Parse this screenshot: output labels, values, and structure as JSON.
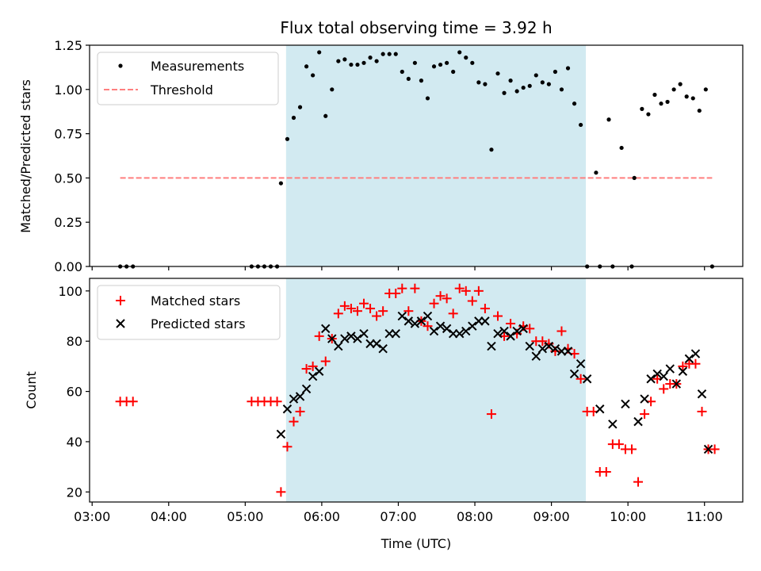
{
  "chart_data": [
    {
      "type": "scatter",
      "title": "Flux total observing time = 3.92 h",
      "xlabel": "",
      "ylabel": "Matched/Predicted stars",
      "ylim": [
        0,
        1.25
      ],
      "yticks": [
        "0.00",
        "0.25",
        "0.50",
        "0.75",
        "1.00",
        "1.25"
      ],
      "xlim": [
        "02:58",
        "11:30"
      ],
      "shaded_interval": [
        "05:32",
        "09:27"
      ],
      "shade_color": "#add8e6",
      "legend": "top-left",
      "series": [
        {
          "name": "Measurements",
          "color": "#000000",
          "marker": "dot",
          "points": [
            [
              "03:22",
              0
            ],
            [
              "03:27",
              0
            ],
            [
              "03:32",
              0
            ],
            [
              "05:05",
              0
            ],
            [
              "05:10",
              0
            ],
            [
              "05:15",
              0
            ],
            [
              "05:20",
              0
            ],
            [
              "05:25",
              0
            ],
            [
              "05:28",
              0.47
            ],
            [
              "05:33",
              0.72
            ],
            [
              "05:38",
              0.84
            ],
            [
              "05:43",
              0.9
            ],
            [
              "05:48",
              1.13
            ],
            [
              "05:53",
              1.08
            ],
            [
              "05:58",
              1.21
            ],
            [
              "06:03",
              0.85
            ],
            [
              "06:08",
              1.0
            ],
            [
              "06:13",
              1.16
            ],
            [
              "06:18",
              1.17
            ],
            [
              "06:23",
              1.14
            ],
            [
              "06:28",
              1.14
            ],
            [
              "06:33",
              1.15
            ],
            [
              "06:38",
              1.18
            ],
            [
              "06:43",
              1.16
            ],
            [
              "06:48",
              1.2
            ],
            [
              "06:53",
              1.2
            ],
            [
              "06:58",
              1.2
            ],
            [
              "07:03",
              1.1
            ],
            [
              "07:08",
              1.06
            ],
            [
              "07:13",
              1.15
            ],
            [
              "07:18",
              1.05
            ],
            [
              "07:23",
              0.95
            ],
            [
              "07:28",
              1.13
            ],
            [
              "07:33",
              1.14
            ],
            [
              "07:38",
              1.15
            ],
            [
              "07:43",
              1.1
            ],
            [
              "07:48",
              1.21
            ],
            [
              "07:53",
              1.18
            ],
            [
              "07:58",
              1.15
            ],
            [
              "08:03",
              1.04
            ],
            [
              "08:08",
              1.03
            ],
            [
              "08:13",
              0.66
            ],
            [
              "08:18",
              1.09
            ],
            [
              "08:23",
              0.98
            ],
            [
              "08:28",
              1.05
            ],
            [
              "08:33",
              0.99
            ],
            [
              "08:38",
              1.01
            ],
            [
              "08:43",
              1.02
            ],
            [
              "08:48",
              1.08
            ],
            [
              "08:53",
              1.04
            ],
            [
              "08:58",
              1.03
            ],
            [
              "09:03",
              1.1
            ],
            [
              "09:08",
              1.0
            ],
            [
              "09:13",
              1.12
            ],
            [
              "09:18",
              0.92
            ],
            [
              "09:23",
              0.8
            ],
            [
              "09:28",
              0
            ],
            [
              "09:38",
              0
            ],
            [
              "09:48",
              0
            ],
            [
              "10:03",
              0
            ],
            [
              "09:35",
              0.53
            ],
            [
              "09:45",
              0.83
            ],
            [
              "09:55",
              0.67
            ],
            [
              "10:05",
              0.5
            ],
            [
              "10:11",
              0.89
            ],
            [
              "10:16",
              0.86
            ],
            [
              "10:21",
              0.97
            ],
            [
              "10:26",
              0.92
            ],
            [
              "10:31",
              0.93
            ],
            [
              "10:36",
              1.0
            ],
            [
              "10:41",
              1.03
            ],
            [
              "10:46",
              0.96
            ],
            [
              "10:51",
              0.95
            ],
            [
              "10:56",
              0.88
            ],
            [
              "11:01",
              1.0
            ],
            [
              "11:06",
              0
            ]
          ]
        },
        {
          "name": "Threshold",
          "color": "#ff7f7f",
          "style": "dashed",
          "points": [
            [
              "03:22",
              0.5
            ],
            [
              "11:06",
              0.5
            ]
          ]
        }
      ]
    },
    {
      "type": "scatter",
      "title": "",
      "xlabel": "Time (UTC)",
      "ylabel": "Count",
      "ylim": [
        16,
        105
      ],
      "yticks": [
        "20",
        "40",
        "60",
        "80",
        "100"
      ],
      "xticks": [
        "03:00",
        "04:00",
        "05:00",
        "06:00",
        "07:00",
        "08:00",
        "09:00",
        "10:00",
        "11:00"
      ],
      "xlim": [
        "02:58",
        "11:30"
      ],
      "shaded_interval": [
        "05:32",
        "09:27"
      ],
      "shade_color": "#add8e6",
      "legend": "top-left",
      "series": [
        {
          "name": "Matched stars",
          "color": "#ff0000",
          "marker": "plus",
          "points": [
            [
              "03:22",
              56
            ],
            [
              "03:27",
              56
            ],
            [
              "03:32",
              56
            ],
            [
              "05:05",
              56
            ],
            [
              "05:10",
              56
            ],
            [
              "05:15",
              56
            ],
            [
              "05:20",
              56
            ],
            [
              "05:25",
              56
            ],
            [
              "05:28",
              20
            ],
            [
              "05:33",
              38
            ],
            [
              "05:38",
              48
            ],
            [
              "05:43",
              52
            ],
            [
              "05:48",
              69
            ],
            [
              "05:53",
              70
            ],
            [
              "05:58",
              82
            ],
            [
              "06:03",
              72
            ],
            [
              "06:08",
              81
            ],
            [
              "06:13",
              91
            ],
            [
              "06:18",
              94
            ],
            [
              "06:23",
              93
            ],
            [
              "06:28",
              92
            ],
            [
              "06:33",
              95
            ],
            [
              "06:38",
              93
            ],
            [
              "06:43",
              90
            ],
            [
              "06:48",
              92
            ],
            [
              "06:53",
              99
            ],
            [
              "06:58",
              99
            ],
            [
              "07:03",
              101
            ],
            [
              "07:08",
              92
            ],
            [
              "07:13",
              101
            ],
            [
              "07:18",
              88
            ],
            [
              "07:23",
              86
            ],
            [
              "07:28",
              95
            ],
            [
              "07:33",
              98
            ],
            [
              "07:38",
              97
            ],
            [
              "07:43",
              91
            ],
            [
              "07:48",
              101
            ],
            [
              "07:53",
              100
            ],
            [
              "07:58",
              96
            ],
            [
              "08:03",
              100
            ],
            [
              "08:08",
              93
            ],
            [
              "08:13",
              51
            ],
            [
              "08:18",
              90
            ],
            [
              "08:23",
              82
            ],
            [
              "08:28",
              87
            ],
            [
              "08:33",
              83
            ],
            [
              "08:38",
              86
            ],
            [
              "08:43",
              85
            ],
            [
              "08:48",
              80
            ],
            [
              "08:53",
              80
            ],
            [
              "08:58",
              79
            ],
            [
              "09:03",
              76
            ],
            [
              "09:08",
              84
            ],
            [
              "09:13",
              77
            ],
            [
              "09:18",
              75
            ],
            [
              "09:23",
              65
            ],
            [
              "09:28",
              52
            ],
            [
              "09:33",
              52
            ],
            [
              "09:38",
              28
            ],
            [
              "09:43",
              28
            ],
            [
              "09:48",
              39
            ],
            [
              "09:53",
              39
            ],
            [
              "09:58",
              37
            ],
            [
              "10:03",
              37
            ],
            [
              "10:08",
              24
            ],
            [
              "10:13",
              51
            ],
            [
              "10:18",
              56
            ],
            [
              "10:23",
              65
            ],
            [
              "10:28",
              61
            ],
            [
              "10:33",
              63
            ],
            [
              "10:38",
              63
            ],
            [
              "10:43",
              70
            ],
            [
              "10:48",
              71
            ],
            [
              "10:53",
              71
            ],
            [
              "10:58",
              52
            ],
            [
              "11:03",
              37
            ],
            [
              "11:08",
              37
            ]
          ]
        },
        {
          "name": "Predicted stars",
          "color": "#000000",
          "marker": "x",
          "points": [
            [
              "05:28",
              43
            ],
            [
              "05:33",
              53
            ],
            [
              "05:38",
              57
            ],
            [
              "05:43",
              58
            ],
            [
              "05:48",
              61
            ],
            [
              "05:53",
              66
            ],
            [
              "05:58",
              68
            ],
            [
              "06:03",
              85
            ],
            [
              "06:08",
              81
            ],
            [
              "06:13",
              78
            ],
            [
              "06:18",
              81
            ],
            [
              "06:23",
              82
            ],
            [
              "06:28",
              81
            ],
            [
              "06:33",
              83
            ],
            [
              "06:38",
              79
            ],
            [
              "06:43",
              79
            ],
            [
              "06:48",
              77
            ],
            [
              "06:53",
              83
            ],
            [
              "06:58",
              83
            ],
            [
              "07:03",
              90
            ],
            [
              "07:08",
              88
            ],
            [
              "07:13",
              87
            ],
            [
              "07:18",
              88
            ],
            [
              "07:23",
              90
            ],
            [
              "07:28",
              84
            ],
            [
              "07:33",
              86
            ],
            [
              "07:38",
              85
            ],
            [
              "07:43",
              83
            ],
            [
              "07:48",
              83
            ],
            [
              "07:53",
              84
            ],
            [
              "07:58",
              86
            ],
            [
              "08:03",
              88
            ],
            [
              "08:08",
              88
            ],
            [
              "08:13",
              78
            ],
            [
              "08:18",
              83
            ],
            [
              "08:23",
              84
            ],
            [
              "08:28",
              82
            ],
            [
              "08:33",
              84
            ],
            [
              "08:38",
              85
            ],
            [
              "08:43",
              78
            ],
            [
              "08:48",
              74
            ],
            [
              "08:53",
              77
            ],
            [
              "08:58",
              78
            ],
            [
              "09:03",
              77
            ],
            [
              "09:08",
              76
            ],
            [
              "09:13",
              76
            ],
            [
              "09:18",
              67
            ],
            [
              "09:23",
              71
            ],
            [
              "09:28",
              65
            ],
            [
              "09:38",
              53
            ],
            [
              "09:48",
              47
            ],
            [
              "09:58",
              55
            ],
            [
              "10:08",
              48
            ],
            [
              "10:13",
              57
            ],
            [
              "10:18",
              65
            ],
            [
              "10:23",
              67
            ],
            [
              "10:28",
              66
            ],
            [
              "10:33",
              69
            ],
            [
              "10:38",
              63
            ],
            [
              "10:43",
              68
            ],
            [
              "10:48",
              73
            ],
            [
              "10:53",
              75
            ],
            [
              "10:58",
              59
            ],
            [
              "11:03",
              37
            ]
          ]
        }
      ]
    }
  ]
}
